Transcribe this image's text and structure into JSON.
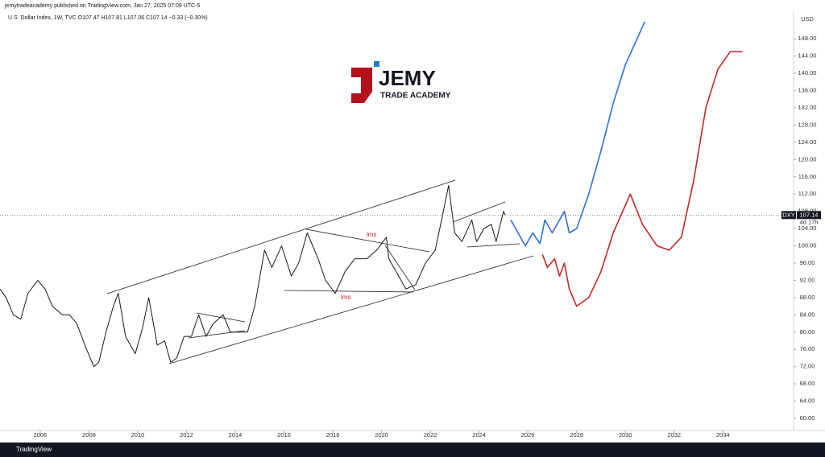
{
  "header": {
    "published": "jemytradeacademy published on TradingView.com, Jan 27, 2025 07:09 UTC-5",
    "symbol_info": "U.S. Dollar Index, 1W, TVC  O107.47  H107.81  L107.06  C107.14  −0.33 (−0.30%)"
  },
  "logo": {
    "name": "JEMY",
    "subtitle": "TRADE ACADEMY"
  },
  "footer": {
    "brand": "TradingView"
  },
  "chart_data": {
    "type": "line",
    "y_unit": "USD",
    "xlim": [
      2004.35,
      2036.9
    ],
    "ylim": [
      57.2,
      154.2
    ],
    "xticks": [
      2006,
      2008,
      2010,
      2012,
      2014,
      2016,
      2018,
      2020,
      2022,
      2024,
      2026,
      2028,
      2030,
      2032,
      2034
    ],
    "yticks": [
      {
        "value": 60,
        "label": "60.00"
      },
      {
        "value": 64,
        "label": "64.00"
      },
      {
        "value": 68,
        "label": "68.00"
      },
      {
        "value": 72,
        "label": "72.00"
      },
      {
        "value": 76,
        "label": "76.00"
      },
      {
        "value": 80,
        "label": "80.00"
      },
      {
        "value": 84,
        "label": "84.00"
      },
      {
        "value": 88,
        "label": "88.00"
      },
      {
        "value": 92,
        "label": "92.00"
      },
      {
        "value": 96,
        "label": "96.00"
      },
      {
        "value": 100,
        "label": "100.00"
      },
      {
        "value": 104,
        "label": "104.00"
      },
      {
        "value": 108,
        "label": "108.00"
      },
      {
        "value": 112,
        "label": "112.00"
      },
      {
        "value": 116,
        "label": "116.00"
      },
      {
        "value": 120,
        "label": "120.00"
      },
      {
        "value": 124,
        "label": "124.00"
      },
      {
        "value": 128,
        "label": "128.00"
      },
      {
        "value": 132,
        "label": "132.00"
      },
      {
        "value": 136,
        "label": "136.00"
      },
      {
        "value": 140,
        "label": "140.00"
      },
      {
        "value": 144,
        "label": "144.00"
      },
      {
        "value": 148,
        "label": "148.00"
      }
    ],
    "grid": false,
    "last_price": {
      "symbol": "DXY",
      "value": 107.14,
      "countdown": "4d 17h"
    },
    "annotations": [
      "lms",
      "lms"
    ],
    "series": [
      {
        "color": "#131722",
        "x": [
          2004.35,
          2004.6,
          2004.9,
          2005.2,
          2005.5,
          2005.9,
          2006.2,
          2006.5,
          2006.9,
          2007.2,
          2007.5,
          2007.9,
          2008.2,
          2008.4,
          2008.7,
          2009.0,
          2009.2,
          2009.5,
          2009.9,
          2010.2,
          2010.45,
          2010.8,
          2011.1,
          2011.35,
          2011.6,
          2011.9,
          2012.2,
          2012.5,
          2012.8,
          2013.1,
          2013.5,
          2013.8,
          2014.2,
          2014.5,
          2014.8,
          2015.2,
          2015.5,
          2015.9,
          2016.3,
          2016.6,
          2016.95,
          2017.4,
          2017.7,
          2018.1,
          2018.5,
          2018.9,
          2019.4,
          2019.8,
          2020.2,
          2020.3,
          2020.7,
          2021.0,
          2021.4,
          2021.8,
          2022.2,
          2022.5,
          2022.75,
          2023.0,
          2023.3,
          2023.7,
          2023.9,
          2024.2,
          2024.5,
          2024.7,
          2025.0,
          2025.07
        ],
        "values": [
          90,
          88,
          84,
          83,
          89,
          92,
          90,
          86,
          84,
          84,
          82,
          76,
          72,
          73,
          80,
          86,
          89,
          79,
          75,
          81,
          88,
          77,
          78,
          73,
          74,
          79,
          79,
          84,
          79,
          82,
          84,
          80,
          80,
          80,
          86,
          99,
          95,
          100,
          93,
          96,
          103,
          97,
          92,
          89,
          94,
          97,
          97,
          99,
          102,
          97,
          93,
          90,
          91,
          96,
          99,
          107,
          114,
          103,
          101,
          106,
          101,
          104,
          105,
          101,
          108,
          107.14
        ]
      },
      {
        "color": "#2f6fdb",
        "x": [
          2025.3,
          2025.9,
          2026.2,
          2026.5,
          2026.7,
          2027.0,
          2027.3,
          2027.5,
          2027.7,
          2028.0,
          2028.5,
          2029.0,
          2029.5,
          2030.0,
          2030.8
        ],
        "values": [
          106,
          100,
          103,
          100.5,
          106,
          103,
          106,
          108,
          103,
          104,
          112,
          122,
          133,
          142,
          152
        ]
      },
      {
        "color": "#c62828",
        "x": [
          2026.6,
          2026.8,
          2027.1,
          2027.3,
          2027.5,
          2027.7,
          2028.0,
          2028.5,
          2029.0,
          2029.5,
          2030.2,
          2030.7,
          2031.3,
          2031.8,
          2032.3,
          2032.8,
          2033.3,
          2033.8,
          2034.3,
          2034.8
        ],
        "values": [
          98,
          95,
          97,
          93,
          96,
          90,
          86,
          88,
          94,
          103,
          112,
          105,
          100,
          99,
          102,
          115,
          132,
          141,
          145,
          145
        ]
      }
    ]
  }
}
